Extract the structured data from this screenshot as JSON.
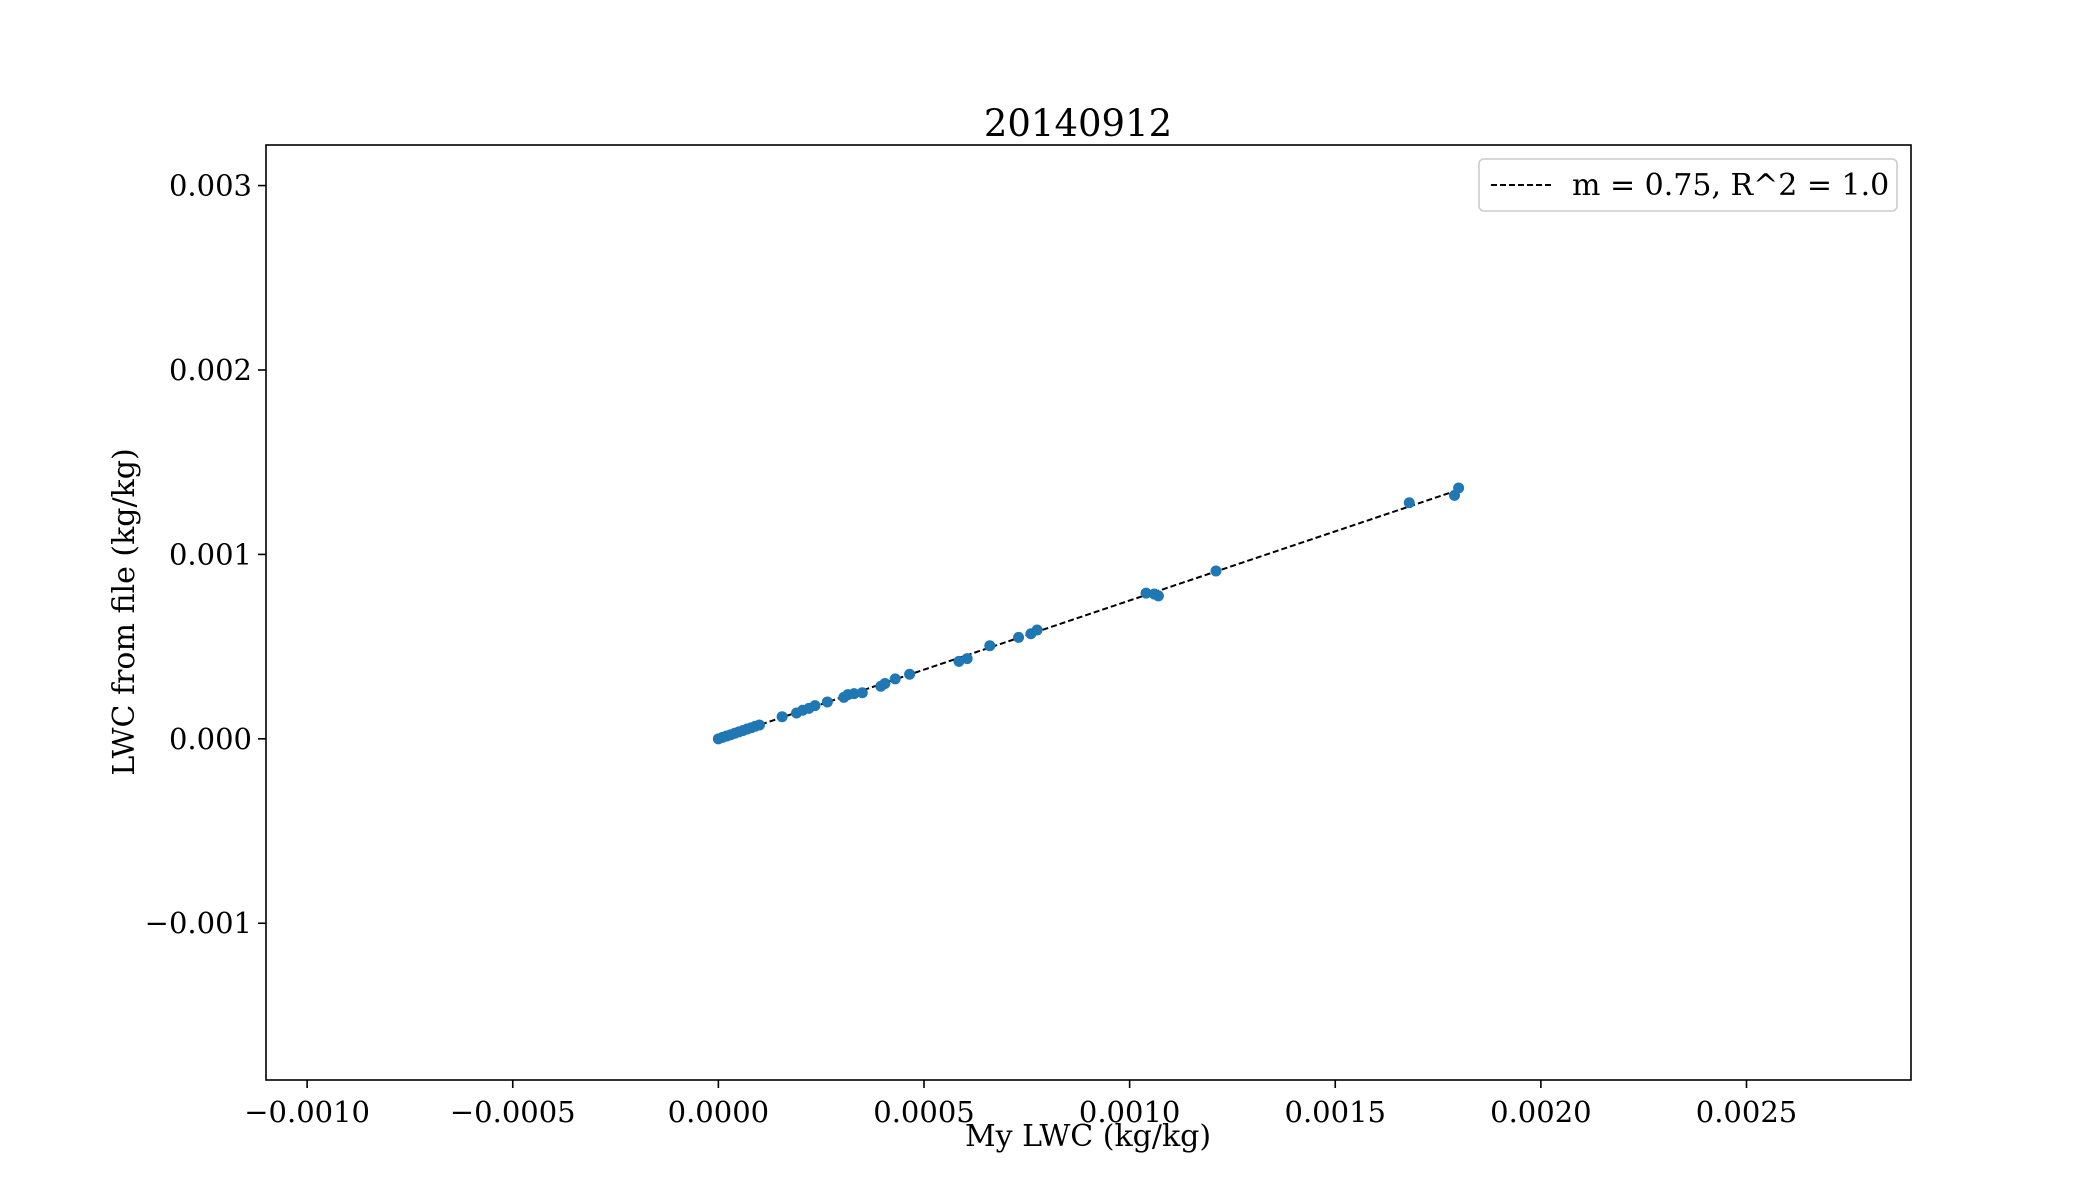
{
  "chart_data": {
    "type": "scatter",
    "title": "20140912",
    "xlabel": "My LWC (kg/kg)",
    "ylabel": "LWC from file (kg/kg)",
    "xlim": [
      -0.0011,
      0.0029
    ],
    "ylim": [
      -0.00185,
      0.00322
    ],
    "grid": false,
    "legend_position": "top-right",
    "x_ticks": [
      -0.001,
      -0.0005,
      0.0,
      0.0005,
      0.001,
      0.0015,
      0.002,
      0.0025
    ],
    "x_tick_labels": [
      "−0.0010",
      "−0.0005",
      "0.0000",
      "0.0005",
      "0.0010",
      "0.0015",
      "0.0020",
      "0.0025"
    ],
    "y_ticks": [
      -0.001,
      0.0,
      0.001,
      0.002,
      0.003
    ],
    "y_tick_labels": [
      "−0.001",
      "0.000",
      "0.001",
      "0.002",
      "0.003"
    ],
    "series": [
      {
        "name": "data",
        "kind": "points",
        "color": "#1f77b4",
        "x": [
          0.0,
          1e-05,
          2e-05,
          3e-05,
          4e-05,
          5e-05,
          6e-05,
          7e-05,
          8e-05,
          9e-05,
          0.0001,
          0.000155,
          0.00019,
          0.000205,
          0.00022,
          0.000235,
          0.000265,
          0.000305,
          0.000315,
          0.00033,
          0.00035,
          0.000395,
          0.000405,
          0.00043,
          0.000465,
          0.000585,
          0.000605,
          0.00066,
          0.00073,
          0.00076,
          0.000775,
          0.00104,
          0.00106,
          0.00107,
          0.00121,
          0.00168,
          0.00179,
          0.0018
        ],
        "y": [
          0.0,
          8e-06,
          1.5e-05,
          2.2e-05,
          3e-05,
          3.8e-05,
          4.5e-05,
          5.3e-05,
          6e-05,
          6.8e-05,
          7.5e-05,
          0.00012,
          0.00014,
          0.000155,
          0.000165,
          0.00018,
          0.0002,
          0.000225,
          0.00024,
          0.000245,
          0.00025,
          0.000285,
          0.0003,
          0.000325,
          0.00035,
          0.00042,
          0.000435,
          0.000505,
          0.00055,
          0.00057,
          0.00059,
          0.00079,
          0.000785,
          0.000775,
          0.00091,
          0.00128,
          0.00132,
          0.00136
        ]
      },
      {
        "name": "m = 0.75, R^2 = 1.0",
        "kind": "fit-line",
        "color": "#000000",
        "slope": 0.75,
        "x_range": [
          0.0,
          0.0018
        ]
      }
    ]
  }
}
